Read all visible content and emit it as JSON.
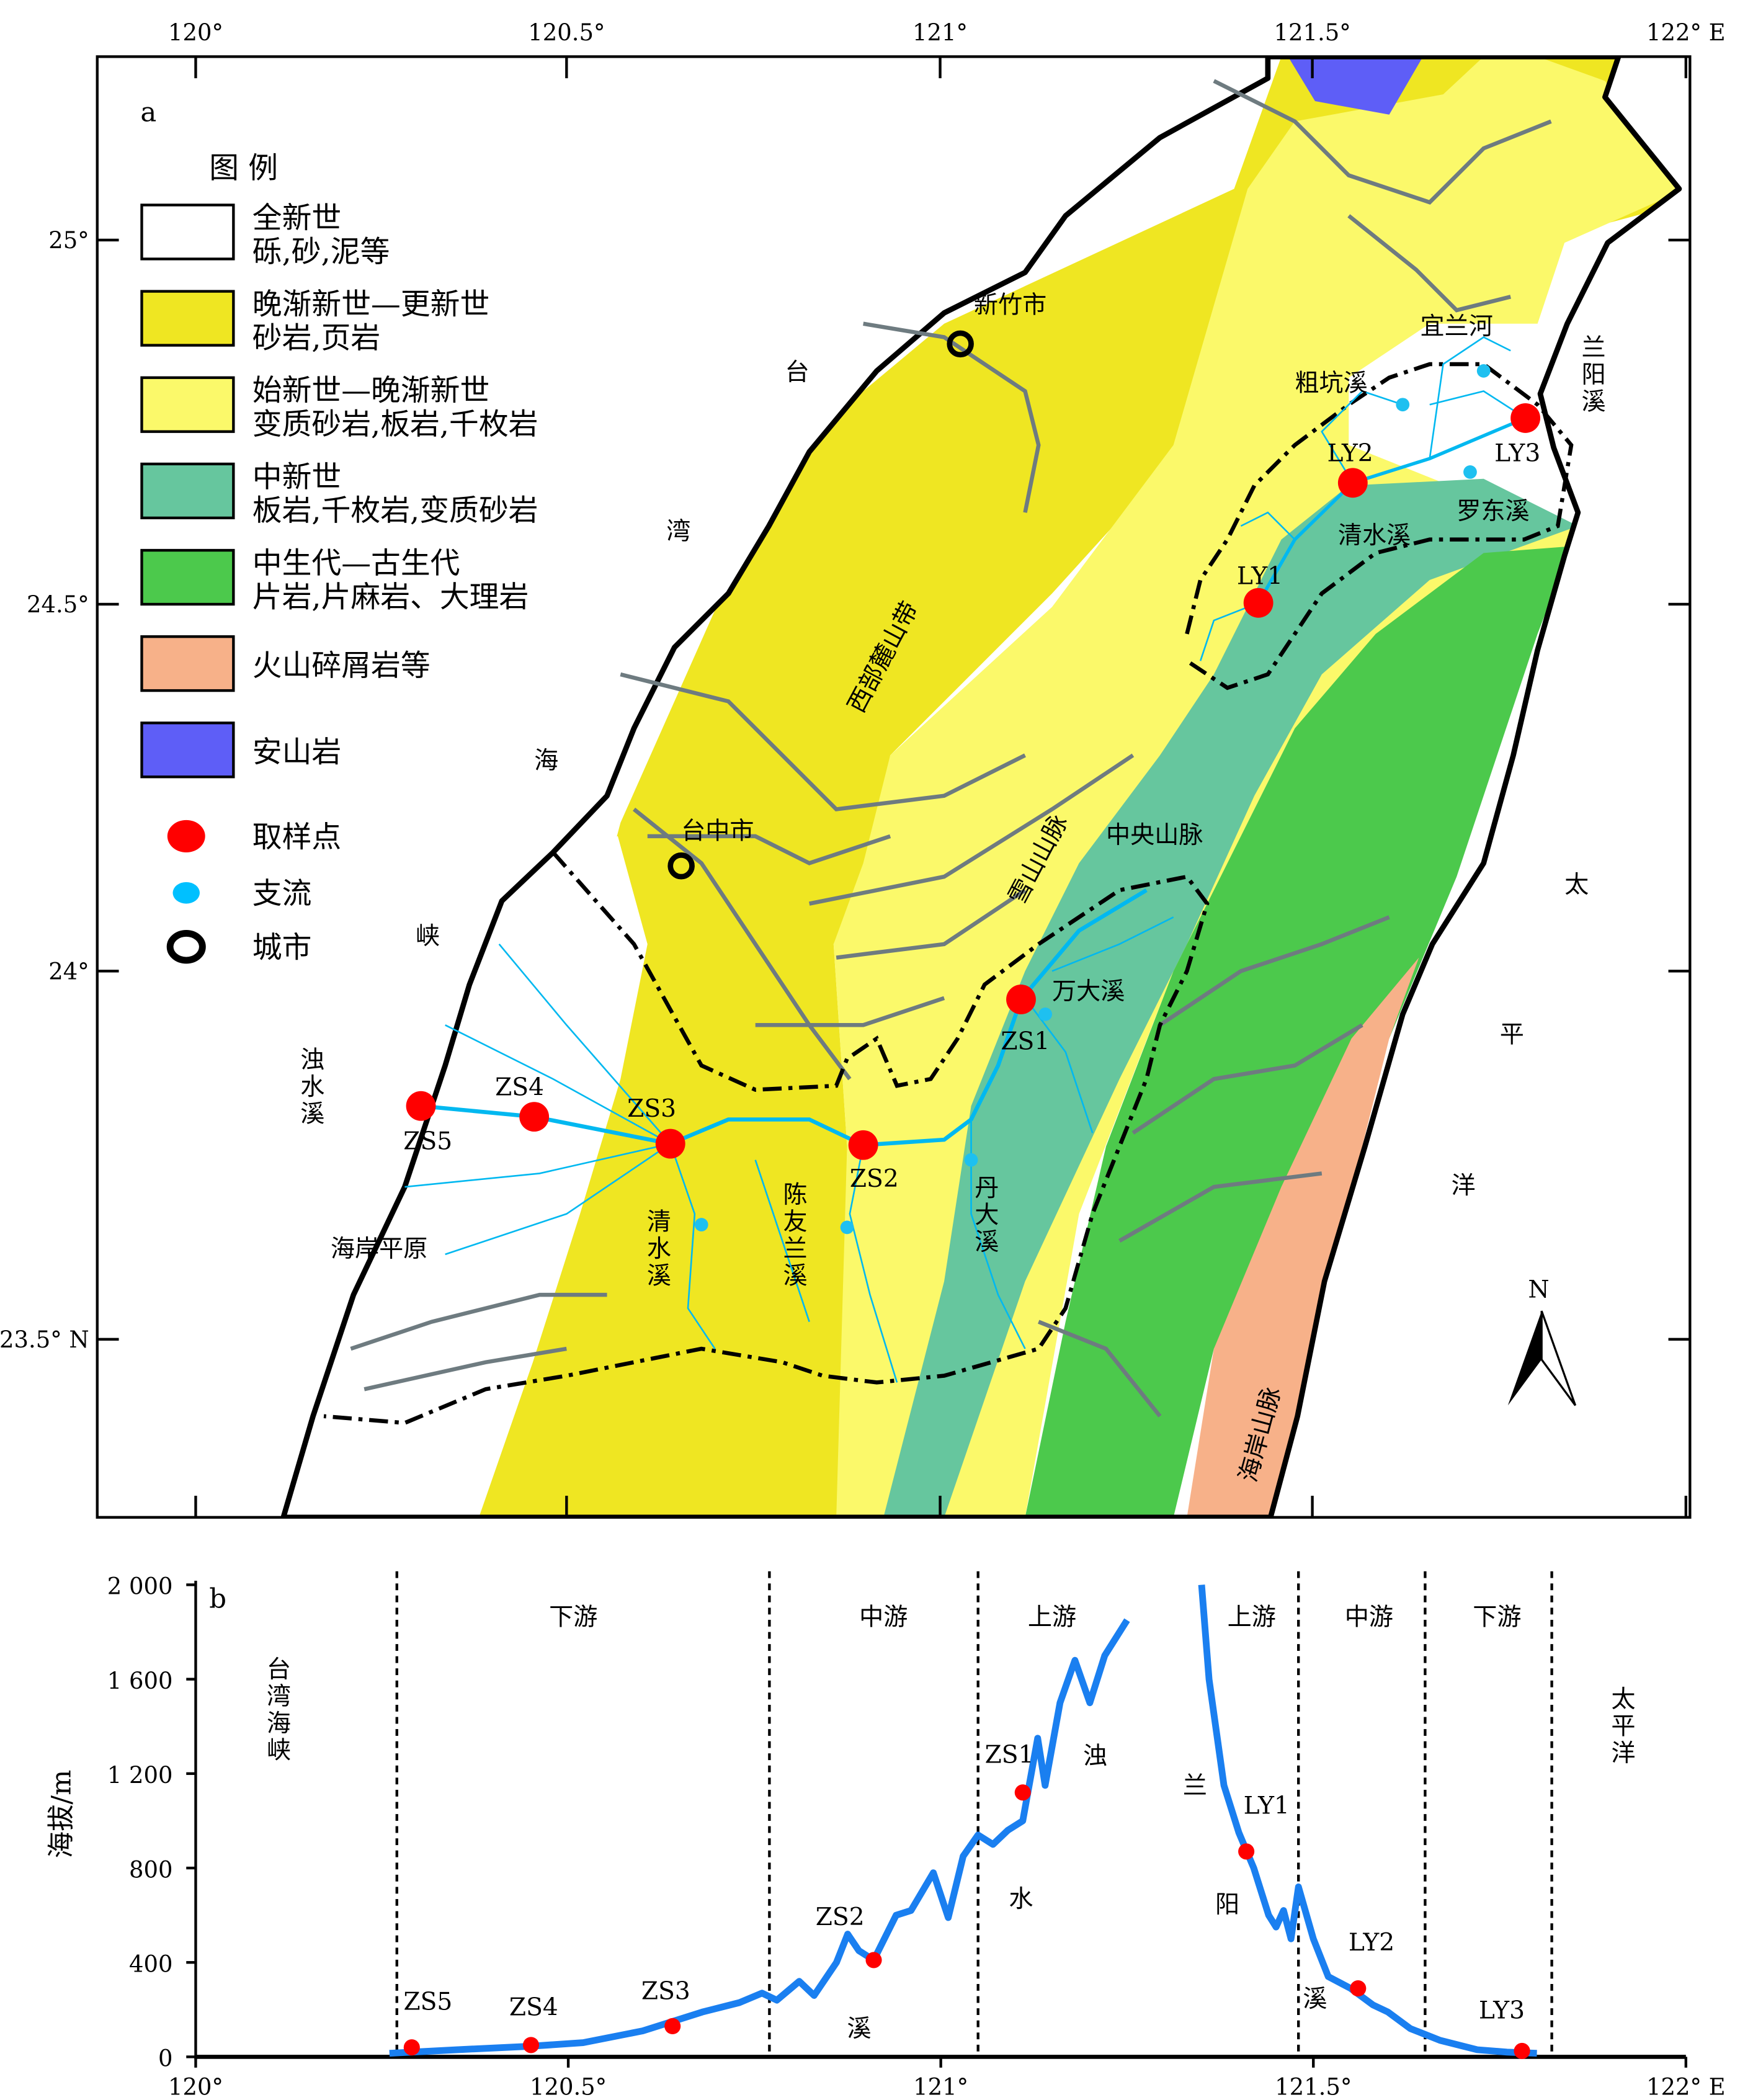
{
  "colors": {
    "holocene": "#ffffff",
    "late_oligocene_pleistocene": "#efe622",
    "eocene_oligocene": "#fbf96a",
    "miocene": "#66c69e",
    "mesozoic_paleozoic": "#4cc94c",
    "volcaniclastic": "#f7b189",
    "andesite": "#5e5ef7",
    "sample_point": "#ff0000",
    "tributary": "#00c0ff",
    "river_profile": "#1a7ff0",
    "road_gray": "#6e7b80"
  },
  "map": {
    "panel_label": "a",
    "lon_ticks": [
      "120°",
      "120.5°",
      "121°",
      "121.5°",
      "122° E"
    ],
    "lat_ticks": [
      "25°",
      "24.5°",
      "24°",
      "23.5° N"
    ],
    "legend": {
      "title": "图 例",
      "items": [
        {
          "line1": "全新世",
          "line2": "砾,砂,泥等",
          "color_key": "holocene"
        },
        {
          "line1": "晚渐新世—更新世",
          "line2": "砂岩,页岩",
          "color_key": "late_oligocene_pleistocene"
        },
        {
          "line1": "始新世—晚渐新世",
          "line2": "变质砂岩,板岩,千枚岩",
          "color_key": "eocene_oligocene"
        },
        {
          "line1": "中新世",
          "line2": "板岩,千枚岩,变质砂岩",
          "color_key": "miocene"
        },
        {
          "line1": "中生代—古生代",
          "line2": "片岩,片麻岩、大理岩",
          "color_key": "mesozoic_paleozoic"
        },
        {
          "line1": "火山碎屑岩等",
          "line2": "",
          "color_key": "volcaniclastic"
        },
        {
          "line1": "安山岩",
          "line2": "",
          "color_key": "andesite"
        }
      ],
      "symbols": [
        {
          "label": "取样点",
          "icon": "red-dot"
        },
        {
          "label": "支流",
          "icon": "cyan-dot"
        },
        {
          "label": "城市",
          "icon": "black-ring"
        }
      ]
    },
    "labels": {
      "hsinchu": "新竹市",
      "taichung": "台中市",
      "strait_1": "台",
      "strait_2": "湾",
      "strait_3": "海",
      "strait_4": "峡",
      "western_foothills": "西部麓山带",
      "hsueshan": "雪山山脉",
      "central_range": "中央山脉",
      "wanda": "万大溪",
      "zhuoshui": "浊水溪",
      "coastal_plain": "海岸平原",
      "qingshui_w": "清水溪",
      "chenyoulan": "陈友兰溪",
      "danda": "丹大溪",
      "yilan_river": "宜兰河",
      "lanyang": "兰阳溪",
      "cukeng": "粗坑溪",
      "luodong": "罗东溪",
      "qingshui_e": "清水溪",
      "pacific_1": "太",
      "pacific_2": "平",
      "pacific_3": "洋",
      "coastal_range": "海岸山脉",
      "north": "N"
    },
    "samples": [
      "ZS1",
      "ZS2",
      "ZS3",
      "ZS4",
      "ZS5",
      "LY1",
      "LY2",
      "LY3"
    ]
  },
  "chart_data": {
    "type": "line",
    "panel_label": "b",
    "ylabel": "海拔/m",
    "xlim": [
      120,
      122
    ],
    "ylim": [
      0,
      2000
    ],
    "x_ticks": [
      "120°",
      "120.5°",
      "121°",
      "121.5°",
      "122° E"
    ],
    "y_ticks": [
      "0",
      "400",
      "800",
      "1 200",
      "1 600",
      "2 000"
    ],
    "y_tick_values": [
      0,
      400,
      800,
      1200,
      1600,
      2000
    ],
    "x_tick_values": [
      120,
      120.5,
      121,
      121.5,
      122
    ],
    "reach_dividers_lon": [
      120.27,
      120.77,
      121.05,
      121.48,
      121.65,
      121.82
    ],
    "reach_labels": [
      "下游",
      "中游",
      "上游",
      "上游",
      "中游",
      "下游"
    ],
    "side_labels": {
      "west": "台湾海峡",
      "east": "太平洋"
    },
    "river_names": {
      "zhuoshui": [
        "浊",
        "水",
        "溪"
      ],
      "lanyang": [
        "兰",
        "阳",
        "溪"
      ]
    },
    "series": [
      {
        "name": "浊水溪",
        "x": [
          120.26,
          120.35,
          120.45,
          120.52,
          120.6,
          120.68,
          120.73,
          120.76,
          120.78,
          120.81,
          120.83,
          120.86,
          120.875,
          120.89,
          120.91,
          120.94,
          120.96,
          120.99,
          121.01,
          121.03,
          121.05,
          121.07,
          121.09,
          121.11,
          121.13,
          121.14,
          121.16,
          121.18,
          121.2,
          121.22,
          121.25
        ],
        "y": [
          15,
          30,
          45,
          60,
          110,
          190,
          230,
          270,
          240,
          320,
          260,
          400,
          520,
          450,
          410,
          600,
          620,
          780,
          590,
          850,
          940,
          900,
          960,
          1000,
          1350,
          1150,
          1500,
          1680,
          1500,
          1700,
          1850
        ]
      },
      {
        "name": "兰阳溪",
        "x": [
          121.35,
          121.36,
          121.38,
          121.4,
          121.42,
          121.44,
          121.45,
          121.46,
          121.47,
          121.48,
          121.5,
          121.52,
          121.55,
          121.58,
          121.6,
          121.63,
          121.67,
          121.72,
          121.76,
          121.8
        ],
        "y": [
          2000,
          1600,
          1150,
          950,
          800,
          600,
          550,
          620,
          500,
          720,
          500,
          340,
          290,
          220,
          190,
          120,
          70,
          30,
          20,
          15
        ]
      }
    ],
    "samples": [
      {
        "label": "ZS5",
        "lon": 120.29,
        "elev": 40
      },
      {
        "label": "ZS4",
        "lon": 120.45,
        "elev": 50
      },
      {
        "label": "ZS3",
        "lon": 120.64,
        "elev": 130
      },
      {
        "label": "ZS2",
        "lon": 120.91,
        "elev": 410
      },
      {
        "label": "ZS1",
        "lon": 121.11,
        "elev": 1120
      },
      {
        "label": "LY1",
        "lon": 121.41,
        "elev": 870
      },
      {
        "label": "LY2",
        "lon": 121.56,
        "elev": 290
      },
      {
        "label": "LY3",
        "lon": 121.78,
        "elev": 25
      }
    ]
  }
}
